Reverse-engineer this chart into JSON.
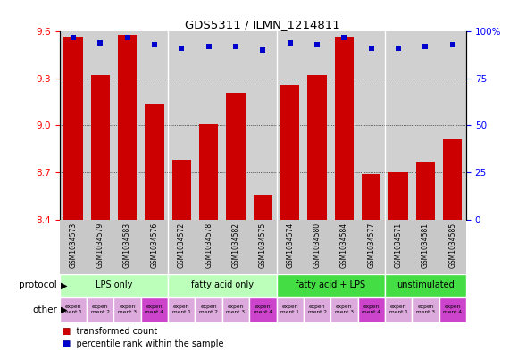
{
  "title": "GDS5311 / ILMN_1214811",
  "samples": [
    "GSM1034573",
    "GSM1034579",
    "GSM1034583",
    "GSM1034576",
    "GSM1034572",
    "GSM1034578",
    "GSM1034582",
    "GSM1034575",
    "GSM1034574",
    "GSM1034580",
    "GSM1034584",
    "GSM1034577",
    "GSM1034571",
    "GSM1034581",
    "GSM1034585"
  ],
  "bar_values": [
    9.57,
    9.32,
    9.58,
    9.14,
    8.78,
    9.01,
    9.21,
    8.56,
    9.26,
    9.32,
    9.57,
    8.69,
    8.7,
    8.77,
    8.91
  ],
  "dot_values": [
    97,
    94,
    97,
    93,
    91,
    92,
    92,
    90,
    94,
    93,
    97,
    91,
    91,
    92,
    93
  ],
  "ylim_left": [
    8.4,
    9.6
  ],
  "ylim_right": [
    0,
    100
  ],
  "yticks_left": [
    8.4,
    8.7,
    9.0,
    9.3,
    9.6
  ],
  "yticks_right": [
    0,
    25,
    50,
    75,
    100
  ],
  "bar_color": "#cc0000",
  "dot_color": "#0000cc",
  "chart_bg": "#d0d0d0",
  "protocol_groups": [
    {
      "label": "LPS only",
      "start": 0,
      "end": 4,
      "color": "#bbffbb"
    },
    {
      "label": "fatty acid only",
      "start": 4,
      "end": 8,
      "color": "#bbffbb"
    },
    {
      "label": "fatty acid + LPS",
      "start": 8,
      "end": 12,
      "color": "#44dd44"
    },
    {
      "label": "unstimulated",
      "start": 12,
      "end": 15,
      "color": "#44dd44"
    }
  ],
  "other_labels": [
    "experi\nment 1",
    "experi\nment 2",
    "experi\nment 3",
    "experi\nment 4",
    "experi\nment 1",
    "experi\nment 2",
    "experi\nment 3",
    "experi\nment 4",
    "experi\nment 1",
    "experi\nment 2",
    "experi\nment 3",
    "experi\nment 4",
    "experi\nment 1",
    "experi\nment 3",
    "experi\nment 4"
  ],
  "other_colors": [
    "#ddaadd",
    "#ddaadd",
    "#ddaadd",
    "#cc44cc",
    "#ddaadd",
    "#ddaadd",
    "#ddaadd",
    "#cc44cc",
    "#ddaadd",
    "#ddaadd",
    "#ddaadd",
    "#cc44cc",
    "#ddaadd",
    "#ddaadd",
    "#cc44cc"
  ],
  "fig_width": 5.8,
  "fig_height": 3.93,
  "dpi": 100
}
